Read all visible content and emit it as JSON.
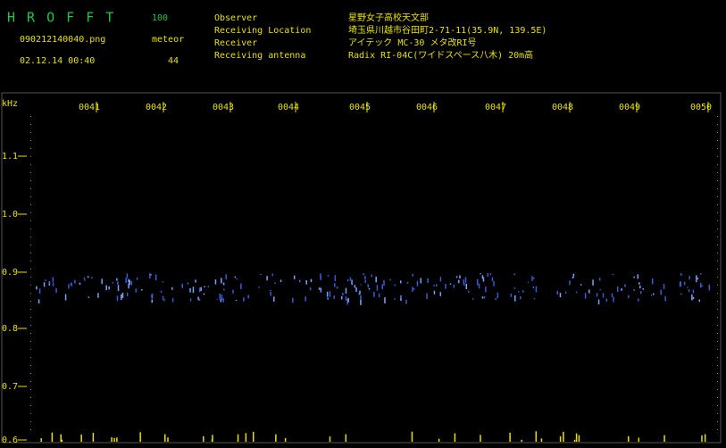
{
  "header": {
    "app": "H R O F F T",
    "level": "100",
    "file": "090212140040.png",
    "meteor_label": "meteor",
    "meteor_count": "44",
    "datetime": "02.12.14 00:40",
    "fields": [
      {
        "label": "Observer",
        "value": "星野女子高校天文部"
      },
      {
        "label": "Receiving Location",
        "value": "埼玉県川越市谷田町2-71-11(35.9N, 139.5E)"
      },
      {
        "label": "Receiver",
        "value": "アイテック MC-30 メタ改RI号"
      },
      {
        "label": "Receiving antenna",
        "value": "Radix RI-04C(ワイドスペース八木) 20m高"
      }
    ]
  },
  "time_axis": {
    "labels": [
      "0041",
      "0042",
      "0043",
      "0044",
      "0045",
      "0046",
      "0047",
      "0048",
      "0049",
      "0050"
    ]
  },
  "freq_axis": {
    "unit": "kHz",
    "labels": [
      "1.1",
      "1.0",
      "0.9",
      "0.8",
      "0.7",
      "0.6"
    ]
  }
}
